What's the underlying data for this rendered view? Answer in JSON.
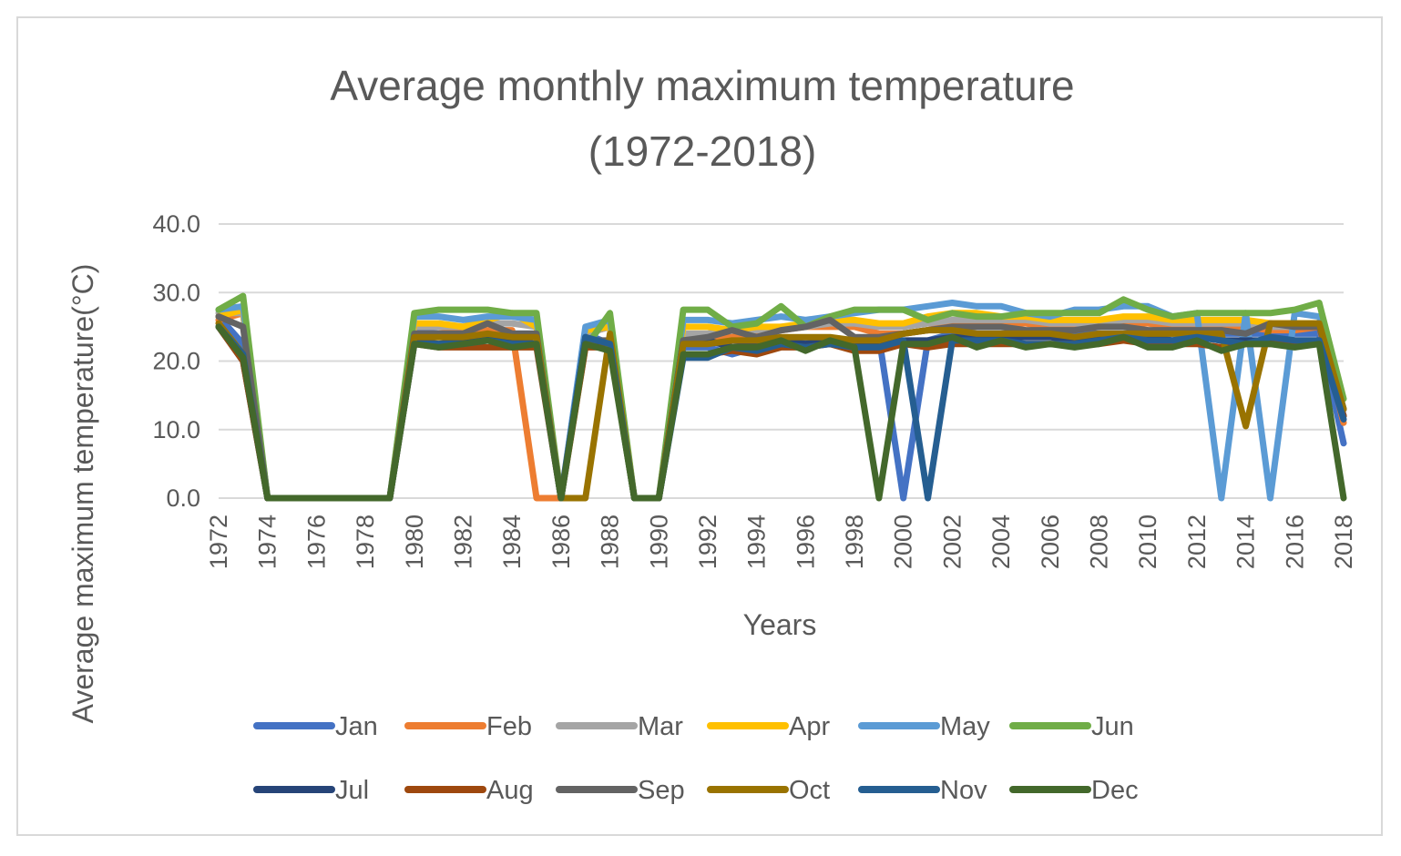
{
  "chart_data": {
    "type": "line",
    "title_lines": [
      "Average monthly maximum temperature",
      "(1972-2018)"
    ],
    "xlabel": "Years",
    "ylabel": "Average maximum temperature(°C)",
    "ylim": [
      0,
      40
    ],
    "yticks": [
      0,
      10,
      20,
      30,
      40
    ],
    "ytick_labels": [
      "0.0",
      "10.0",
      "20.0",
      "30.0",
      "40.0"
    ],
    "x": [
      1972,
      1973,
      1974,
      1975,
      1976,
      1977,
      1978,
      1979,
      1980,
      1981,
      1982,
      1983,
      1984,
      1985,
      1986,
      1987,
      1988,
      1989,
      1990,
      1991,
      1992,
      1993,
      1994,
      1995,
      1996,
      1997,
      1998,
      1999,
      2000,
      2001,
      2002,
      2003,
      2004,
      2005,
      2006,
      2007,
      2008,
      2009,
      2010,
      2011,
      2012,
      2013,
      2014,
      2015,
      2016,
      2017,
      2018
    ],
    "xtick_labels": [
      "1972",
      "1974",
      "1976",
      "1978",
      "1980",
      "1982",
      "1984",
      "1986",
      "1988",
      "1990",
      "1992",
      "1994",
      "1996",
      "1998",
      "2000",
      "2002",
      "2004",
      "2006",
      "2008",
      "2010",
      "2012",
      "2014",
      "2016",
      "2018"
    ],
    "grid": "horizontal",
    "legend_position": "bottom",
    "series": [
      {
        "name": "Jan",
        "color": "#4472c4",
        "values": [
          26.5,
          22.5,
          0,
          0,
          0,
          0,
          0,
          0,
          24.5,
          24,
          24.5,
          24,
          24,
          24,
          0,
          24,
          22.5,
          0,
          0,
          22,
          22,
          21,
          22,
          23,
          23,
          23,
          23,
          23.5,
          0,
          23,
          24,
          24,
          24,
          24,
          24,
          24,
          24,
          24,
          24,
          24,
          24,
          24,
          24,
          24,
          24,
          24,
          8
        ]
      },
      {
        "name": "Feb",
        "color": "#ed7d31",
        "values": [
          26,
          27,
          0,
          0,
          0,
          0,
          0,
          0,
          24,
          24,
          24.5,
          24.5,
          24.5,
          0,
          0,
          24,
          25,
          0,
          0,
          23.5,
          23.5,
          23.5,
          24,
          24.5,
          25,
          25,
          25,
          24,
          24,
          24.5,
          25.5,
          25.5,
          25.5,
          25.5,
          25,
          25,
          25,
          25.5,
          25.5,
          25,
          25,
          25,
          25,
          24.5,
          24.5,
          25,
          11
        ]
      },
      {
        "name": "Mar",
        "color": "#a5a5a5",
        "values": [
          27,
          27,
          0,
          0,
          0,
          0,
          0,
          0,
          25,
          25,
          25,
          25.5,
          25.5,
          25,
          0,
          24,
          25,
          0,
          0,
          24,
          24,
          24.5,
          24.5,
          25,
          25,
          25.5,
          25.5,
          25,
          25,
          25.5,
          26,
          26,
          26,
          26,
          25.5,
          25.5,
          25.5,
          26,
          26,
          25.5,
          25.5,
          25.5,
          25.5,
          25,
          25,
          25.5,
          12
        ]
      },
      {
        "name": "Apr",
        "color": "#ffc000",
        "values": [
          26.5,
          27.5,
          0,
          0,
          0,
          0,
          0,
          0,
          25.5,
          25.5,
          25,
          26,
          27,
          25,
          0,
          24.5,
          25,
          0,
          0,
          25,
          25,
          24.5,
          25,
          25,
          25.5,
          26,
          26,
          25.5,
          25.5,
          26.5,
          27,
          27,
          26.5,
          26.5,
          26,
          26,
          26,
          26.5,
          26.5,
          26,
          26,
          26,
          26,
          25.5,
          25.5,
          25.5,
          13
        ]
      },
      {
        "name": "May",
        "color": "#5b9bd5",
        "values": [
          27.5,
          28,
          0,
          0,
          0,
          0,
          0,
          0,
          26.5,
          26.5,
          26,
          26.5,
          26.5,
          26,
          0,
          25,
          26,
          0,
          0,
          26,
          26,
          25.5,
          26,
          26.5,
          26,
          26.5,
          27,
          27.5,
          27.5,
          28,
          28.5,
          28,
          28,
          27,
          26.5,
          27.5,
          27.5,
          28,
          28,
          26.5,
          27,
          0,
          27,
          0,
          27,
          26.5,
          13
        ]
      },
      {
        "name": "Jun",
        "color": "#70ad47",
        "values": [
          27.5,
          29.5,
          0,
          0,
          0,
          0,
          0,
          0,
          27,
          27.5,
          27.5,
          27.5,
          27,
          27,
          0,
          22,
          27,
          0,
          0,
          27.5,
          27.5,
          25,
          25.5,
          28,
          25,
          26.5,
          27.5,
          27.5,
          27.5,
          26,
          27,
          26.5,
          26.5,
          27,
          27,
          27,
          27,
          29,
          27.5,
          26.5,
          27,
          27,
          27,
          27,
          27.5,
          28.5,
          14.5
        ]
      },
      {
        "name": "Jul",
        "color": "#264478",
        "values": [
          25,
          20,
          0,
          0,
          0,
          0,
          0,
          0,
          23,
          22.5,
          23,
          23.5,
          23,
          22.5,
          0,
          23.5,
          22,
          0,
          0,
          23,
          23,
          22,
          22.5,
          23,
          22.5,
          23,
          22.5,
          22.5,
          23,
          23,
          23.5,
          23.5,
          23.5,
          23.5,
          23.5,
          23,
          23.5,
          23.5,
          23.5,
          23,
          23.5,
          23,
          23,
          23,
          23,
          23,
          12
        ]
      },
      {
        "name": "Aug",
        "color": "#9e480e",
        "values": [
          25,
          20,
          0,
          0,
          0,
          0,
          0,
          0,
          22.5,
          22,
          22,
          22,
          22,
          22,
          0,
          22,
          22,
          0,
          0,
          21,
          21,
          21.5,
          21,
          22,
          22,
          22.5,
          21.5,
          21.5,
          22.5,
          22,
          22.5,
          22.5,
          22.5,
          22.5,
          22.5,
          22.5,
          22.5,
          23,
          22.5,
          22.5,
          22.5,
          22,
          22.5,
          22.5,
          22.5,
          22.5,
          12
        ]
      },
      {
        "name": "Sep",
        "color": "#636363",
        "values": [
          26.5,
          25,
          0,
          0,
          0,
          0,
          0,
          0,
          24,
          24,
          24,
          25.5,
          24,
          24,
          0,
          23,
          23,
          0,
          0,
          23,
          23.5,
          24.5,
          23.5,
          24.5,
          25,
          26,
          23.5,
          23.5,
          24,
          24.5,
          25,
          25,
          25,
          24.5,
          24.5,
          24.5,
          25,
          25,
          24.5,
          24.5,
          24.5,
          24.5,
          24,
          25.5,
          25,
          25,
          13
        ]
      },
      {
        "name": "Oct",
        "color": "#997300",
        "values": [
          25.5,
          21,
          0,
          0,
          0,
          0,
          0,
          0,
          23.5,
          23.5,
          23.5,
          24,
          23.5,
          23.5,
          0,
          0,
          24,
          0,
          0,
          22.5,
          22.5,
          23,
          23,
          23.5,
          23.5,
          23.5,
          23,
          23,
          24,
          24.5,
          24.5,
          24,
          24,
          24,
          24,
          23.5,
          24,
          24,
          24,
          24,
          24,
          24,
          10.5,
          25.5,
          25.5,
          25.5,
          13
        ]
      },
      {
        "name": "Nov",
        "color": "#255e91",
        "values": [
          25,
          21,
          0,
          0,
          0,
          0,
          0,
          0,
          22.5,
          22.5,
          22.5,
          23,
          22.5,
          22.5,
          0,
          23.5,
          22.5,
          0,
          0,
          20.5,
          20.5,
          22,
          21.5,
          22.5,
          22,
          22.5,
          22,
          22,
          23,
          0,
          23,
          23,
          23,
          22.5,
          22.5,
          22.5,
          23,
          23.5,
          23,
          23,
          23.5,
          23,
          22.5,
          23.5,
          23,
          23,
          11.5
        ]
      },
      {
        "name": "Dec",
        "color": "#43682b",
        "values": [
          25,
          20.5,
          0,
          0,
          0,
          0,
          0,
          0,
          22.5,
          22,
          22.5,
          23,
          22,
          22.5,
          0,
          22.5,
          21.5,
          0,
          0,
          21,
          21,
          22,
          22,
          23,
          21.5,
          23,
          22,
          0,
          22.5,
          22.5,
          23.5,
          22,
          23,
          22,
          22.5,
          22,
          22.5,
          23.5,
          22,
          22,
          23,
          21.5,
          22.5,
          22.5,
          22,
          22.5,
          0
        ]
      }
    ]
  }
}
